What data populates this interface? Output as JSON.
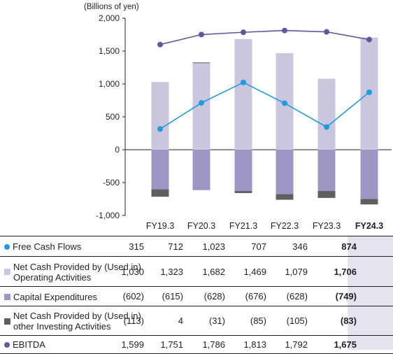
{
  "chart_data": {
    "type": "bar+line",
    "unit_label": "(Billions of yen)",
    "categories": [
      "FY19.3",
      "FY20.3",
      "FY21.3",
      "FY22.3",
      "FY23.3",
      "FY24.3"
    ],
    "highlight_category": "FY24.3",
    "ylim": [
      -1000,
      2000
    ],
    "yticks": [
      "2,000",
      "1,500",
      "1,000",
      "500",
      "0",
      "-500",
      "-1,000"
    ],
    "ytick_values": [
      2000,
      1500,
      1000,
      500,
      0,
      -500,
      -1000
    ],
    "series": [
      {
        "name": "Free Cash Flows",
        "type": "line",
        "color": "#1f9ce0",
        "values": [
          315,
          712,
          1023,
          707,
          346,
          874
        ],
        "display": [
          "315",
          "712",
          "1,023",
          "707",
          "346",
          "874"
        ]
      },
      {
        "name": "Net Cash Provided by (Used in) Operating Activities",
        "type": "bar",
        "color": "#c9c6de",
        "values": [
          1030,
          1323,
          1682,
          1469,
          1079,
          1706
        ],
        "display": [
          "1,030",
          "1,323",
          "1,682",
          "1,469",
          "1,079",
          "1,706"
        ]
      },
      {
        "name": "Capital Expenditures",
        "type": "bar",
        "color": "#9b96c4",
        "values": [
          -602,
          -615,
          -628,
          -676,
          -628,
          -749
        ],
        "display": [
          "(602)",
          "(615)",
          "(628)",
          "(676)",
          "(628)",
          "(749)"
        ]
      },
      {
        "name": "Net Cash Provided by (Used in) other Investing Activities",
        "type": "bar",
        "color": "#5f5f5f",
        "values": [
          -113,
          4,
          -31,
          -85,
          -105,
          -83
        ],
        "display": [
          "(113)",
          "4",
          "(31)",
          "(85)",
          "(105)",
          "(83)"
        ]
      },
      {
        "name": "EBITDA",
        "type": "line",
        "color": "#5c5a9c",
        "values": [
          1599,
          1751,
          1786,
          1813,
          1792,
          1675
        ],
        "display": [
          "1,599",
          "1,751",
          "1,786",
          "1,813",
          "1,792",
          "1,675"
        ]
      }
    ]
  },
  "table": {
    "rows": [
      {
        "label": "Free Cash Flows",
        "marker": "dot",
        "color": "#1f9ce0"
      },
      {
        "label": "Net Cash Provided by (Used in) Operating Activities",
        "marker": "square",
        "color": "#c9c6de"
      },
      {
        "label": "Capital Expenditures",
        "marker": "square",
        "color": "#9b96c4"
      },
      {
        "label": "Net Cash Provided by (Used in) other Investing Activities",
        "marker": "square",
        "color": "#5f5f5f"
      },
      {
        "label": "EBITDA",
        "marker": "dot",
        "color": "#5c5a9c"
      }
    ]
  }
}
